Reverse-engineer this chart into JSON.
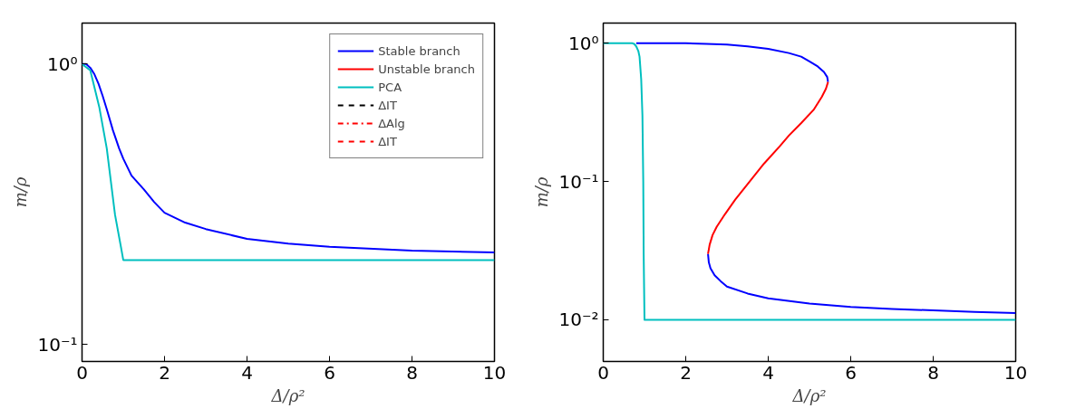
{
  "chart_data": [
    {
      "type": "line",
      "xlabel": "Δ/ρ²",
      "ylabel": "m/ρ",
      "log": "y",
      "grid": false,
      "legend": "top right",
      "xlim": [
        0,
        10
      ],
      "xticks": [
        0,
        2,
        4,
        6,
        8,
        10
      ],
      "ylim": [
        0.087,
        1.4
      ],
      "yticks": [
        {
          "value": 0.1,
          "label": "10⁻¹"
        },
        {
          "value": 1,
          "label": "10⁰"
        }
      ],
      "series": [
        {
          "name": "Stable branch",
          "color": "#0000ff",
          "line_style": "solid",
          "x": [
            0,
            0.1,
            0.2,
            0.3,
            0.4,
            0.5,
            0.6,
            0.75,
            0.9,
            1,
            1.2,
            1.5,
            1.75,
            2,
            2.5,
            3,
            4,
            5,
            6,
            8,
            10
          ],
          "values": [
            1,
            1,
            0.97,
            0.92,
            0.85,
            0.77,
            0.69,
            0.58,
            0.5,
            0.46,
            0.4,
            0.357,
            0.322,
            0.295,
            0.272,
            0.258,
            0.238,
            0.229,
            0.223,
            0.216,
            0.213
          ]
        },
        {
          "name": "Unstable branch",
          "color": "#ff0000",
          "line_style": "solid"
        },
        {
          "name": "PCA",
          "color": "#00bfbf",
          "line_style": "solid",
          "x": [
            0,
            0.2,
            0.42,
            0.6,
            0.8,
            0.95,
            1,
            10
          ],
          "values": [
            1,
            0.95,
            0.7,
            0.5,
            0.29,
            0.22,
            0.2,
            0.2
          ]
        },
        {
          "name": "ΔIT",
          "color": "#000000",
          "line_style": "dashed"
        },
        {
          "name": "ΔAlg",
          "color": "#ff0000",
          "line_style": "dashdot"
        },
        {
          "name": "ΔIT",
          "color": "#ff0000",
          "line_style": "dashed"
        }
      ]
    },
    {
      "type": "line",
      "xlabel": "Δ/ρ²",
      "ylabel": "m/ρ",
      "log": "y",
      "grid": false,
      "legend": false,
      "xlim": [
        0,
        10
      ],
      "xticks": [
        0,
        2,
        4,
        6,
        8,
        10
      ],
      "ylim": [
        0.005,
        1.4
      ],
      "yticks": [
        {
          "value": 0.01,
          "label": "10⁻²"
        },
        {
          "value": 0.1,
          "label": "10⁻¹"
        },
        {
          "value": 1,
          "label": "10⁰"
        }
      ],
      "series": [
        {
          "color": "#0000ff",
          "line_style": "solid",
          "x": [
            0.8,
            2,
            2.5,
            3,
            3.5,
            4,
            4.5,
            4.8,
            5,
            5.2,
            5.35,
            5.43,
            5.45,
            null,
            2.54,
            2.56,
            2.6,
            2.7,
            2.85,
            3,
            3.5,
            4,
            5,
            6,
            7,
            8,
            9,
            10
          ],
          "values": [
            1,
            1,
            0.99,
            0.98,
            0.95,
            0.91,
            0.85,
            0.8,
            0.74,
            0.68,
            0.62,
            0.57,
            0.525,
            null,
            0.03,
            0.026,
            0.0236,
            0.021,
            0.019,
            0.0174,
            0.0155,
            0.0143,
            0.0131,
            0.0124,
            0.012,
            0.0117,
            0.0114,
            0.0112
          ]
        },
        {
          "color": "#ff0000",
          "line_style": "solid",
          "x": [
            5.45,
            5.4,
            5.3,
            5.1,
            4.8,
            4.5,
            4.28,
            3.9,
            3.55,
            3.2,
            2.95,
            2.75,
            2.65,
            2.58,
            2.54
          ],
          "values": [
            0.525,
            0.47,
            0.41,
            0.33,
            0.265,
            0.215,
            0.18,
            0.135,
            0.1,
            0.074,
            0.058,
            0.047,
            0.041,
            0.035,
            0.03
          ]
        },
        {
          "color": "#00bfbf",
          "line_style": "solid",
          "x": [
            0,
            0.7,
            0.75,
            0.8,
            0.85,
            0.88,
            0.92,
            0.95,
            0.97,
            0.98,
            1,
            10
          ],
          "values": [
            1,
            1,
            0.99,
            0.95,
            0.88,
            0.8,
            0.55,
            0.3,
            0.1,
            0.03,
            0.01,
            0.01
          ]
        }
      ]
    }
  ]
}
